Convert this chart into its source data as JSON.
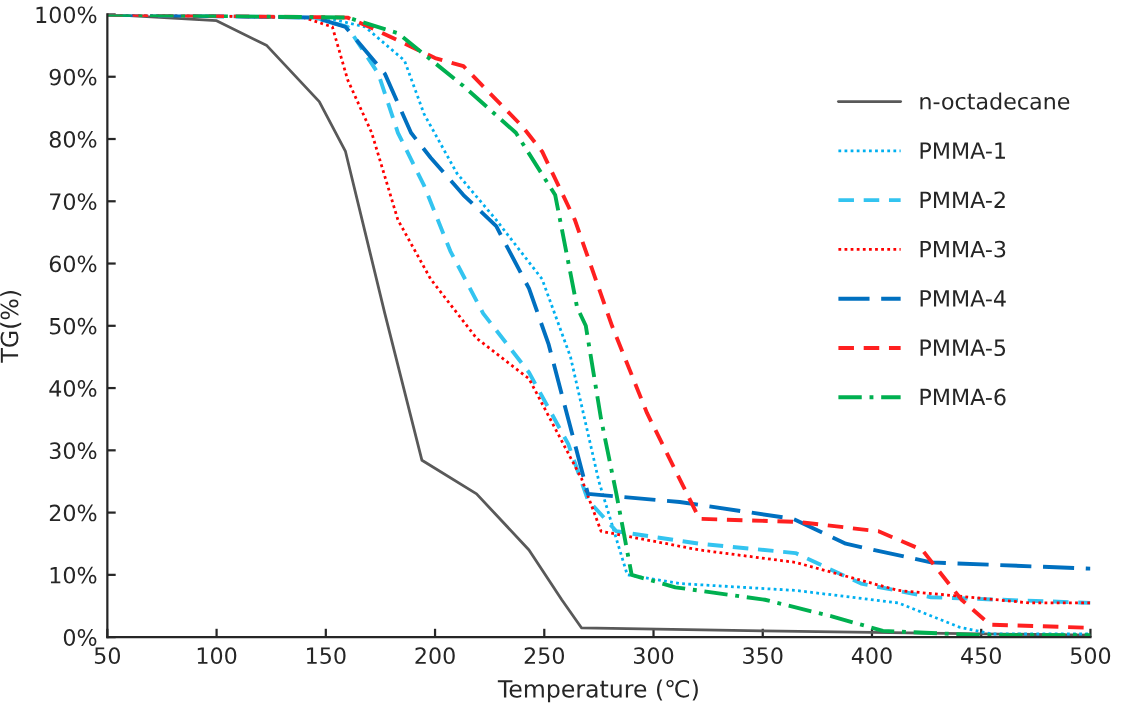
{
  "chart_data": {
    "type": "line",
    "xlabel": "Temperature (℃)",
    "ylabel": "TG(%)",
    "xlim": [
      50,
      500
    ],
    "xticks": [
      50,
      100,
      150,
      200,
      250,
      300,
      350,
      400,
      450,
      500
    ],
    "ylim": [
      0,
      100
    ],
    "yticks": [
      {
        "value": 0,
        "label": "0%"
      },
      {
        "value": 10,
        "label": "10%"
      },
      {
        "value": 20,
        "label": "20%"
      },
      {
        "value": 30,
        "label": "30%"
      },
      {
        "value": 40,
        "label": "40%"
      },
      {
        "value": 50,
        "label": "50%"
      },
      {
        "value": 60,
        "label": "60%"
      },
      {
        "value": 70,
        "label": "70%"
      },
      {
        "value": 80,
        "label": "80%"
      },
      {
        "value": 90,
        "label": "90%"
      },
      {
        "value": 100,
        "label": "100%"
      }
    ],
    "grid": false,
    "legend": "right",
    "marker": "none",
    "series": [
      {
        "name": "n-octadecane",
        "color": "#595959",
        "line_style": "solid",
        "x": [
          50,
          100,
          123,
          147,
          159,
          168,
          177,
          194,
          219,
          243,
          258,
          267,
          350,
          500
        ],
        "values": [
          100,
          99,
          95,
          86,
          78,
          65,
          52,
          28.4,
          23,
          14,
          6,
          1.5,
          1,
          0.3
        ]
      },
      {
        "name": "PMMA-1",
        "color": "#00b0f0",
        "line_style": "dotted",
        "x": [
          50,
          150,
          168,
          186,
          195,
          210,
          228,
          249,
          262,
          275,
          288,
          312,
          365,
          412,
          440,
          455,
          500
        ],
        "values": [
          100,
          99.5,
          98,
          92.6,
          84,
          74.5,
          67,
          57.5,
          45,
          25,
          10,
          8.6,
          7.5,
          5.5,
          1.6,
          0.5,
          0.5
        ]
      },
      {
        "name": "PMMA-2",
        "color": "#33c4f0",
        "line_style": "dashed",
        "x": [
          50,
          145,
          160,
          174,
          183,
          195,
          207,
          222,
          243,
          261,
          270,
          283,
          321,
          365,
          395,
          427,
          500
        ],
        "values": [
          100,
          99.5,
          98,
          90.5,
          81,
          72.5,
          62,
          52,
          42.5,
          31,
          22,
          17,
          15,
          13.5,
          8.6,
          6.4,
          5.5
        ]
      },
      {
        "name": "PMMA-3",
        "color": "#ff0000",
        "line_style": "dotted",
        "x": [
          50,
          140,
          153,
          160,
          171,
          183,
          198,
          219,
          243,
          267,
          276,
          321,
          365,
          412,
          472,
          500
        ],
        "values": [
          100,
          99.5,
          98,
          89.5,
          81,
          67,
          57.5,
          48,
          41.5,
          25.5,
          17,
          14,
          12,
          7.5,
          5.5,
          5.5
        ]
      },
      {
        "name": "PMMA-4",
        "color": "#0070c0",
        "line_style": "long_dashed",
        "x": [
          50,
          145,
          159,
          177,
          189,
          198,
          213,
          228,
          243,
          252,
          261,
          270,
          312,
          364,
          388,
          427,
          500
        ],
        "values": [
          100,
          99.5,
          98,
          90.5,
          81,
          77,
          71,
          66,
          56,
          47,
          35,
          23,
          21.7,
          19,
          15,
          12,
          11
        ]
      },
      {
        "name": "PMMA-5",
        "color": "#ff2020",
        "line_style": "dashed",
        "x": [
          50,
          160,
          170,
          200,
          213,
          240,
          249,
          264,
          281,
          297,
          321,
          366,
          403,
          423,
          441,
          454,
          500
        ],
        "values": [
          100,
          99.5,
          98,
          93,
          91.7,
          82,
          78,
          67,
          50,
          36,
          19,
          18.5,
          17,
          14,
          6,
          2,
          1.5
        ]
      },
      {
        "name": "PMMA-6",
        "color": "#00b050",
        "line_style": "dashdot",
        "x": [
          50,
          160,
          183,
          213,
          237,
          255,
          265,
          269,
          276,
          283,
          290,
          310,
          351,
          382,
          405,
          450,
          500
        ],
        "values": [
          100,
          99.5,
          97,
          88.5,
          81,
          71,
          53,
          50,
          35,
          23,
          10,
          8,
          6,
          3.3,
          1,
          0.3,
          0.3
        ]
      }
    ]
  }
}
